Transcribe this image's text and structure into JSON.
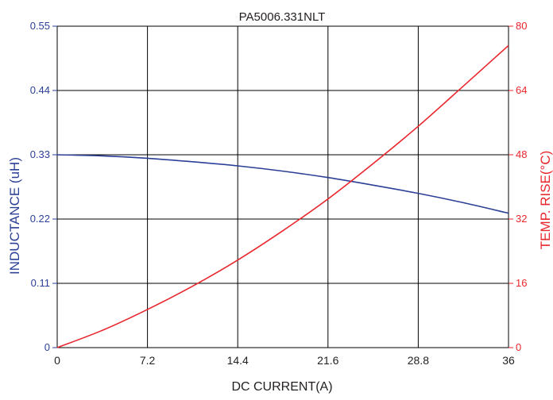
{
  "chart_data": {
    "type": "line",
    "title": "PA5006.331NLT",
    "xlabel": "DC CURRENT(A)",
    "ylabel_left": "INDUCTANCE (uH)",
    "ylabel_right": "TEMP. RISE(°C)",
    "xlim": [
      0,
      36
    ],
    "ylim_left": [
      0,
      0.55
    ],
    "ylim_right": [
      0,
      80
    ],
    "x_ticks": [
      "0",
      "7.2",
      "14.4",
      "21.6",
      "28.8",
      "36"
    ],
    "y_left_ticks": [
      "0",
      "0.11",
      "0.22",
      "0.33",
      "0.44",
      "0.55"
    ],
    "y_right_ticks": [
      "0",
      "16",
      "32",
      "48",
      "64",
      "80"
    ],
    "grid": true,
    "colors": {
      "inductance": "#2b3f97",
      "temperature": "#e8262d",
      "grid": "#000000"
    },
    "series": [
      {
        "axis": "left",
        "x": [
          0,
          3.6,
          7.2,
          10.8,
          14.4,
          18,
          21.6,
          25.2,
          28.8,
          32.4,
          36
        ],
        "values": [
          0.33,
          0.328,
          0.324,
          0.318,
          0.311,
          0.302,
          0.291,
          0.278,
          0.264,
          0.248,
          0.23
        ]
      },
      {
        "axis": "right",
        "x": [
          0,
          3.6,
          7.2,
          10.8,
          14.4,
          18,
          21.6,
          25.2,
          28.8,
          32.4,
          36
        ],
        "values": [
          0,
          4.3,
          9.5,
          15.3,
          21.8,
          29.1,
          37.0,
          45.8,
          55.1,
          65.1,
          75.2
        ]
      }
    ]
  }
}
